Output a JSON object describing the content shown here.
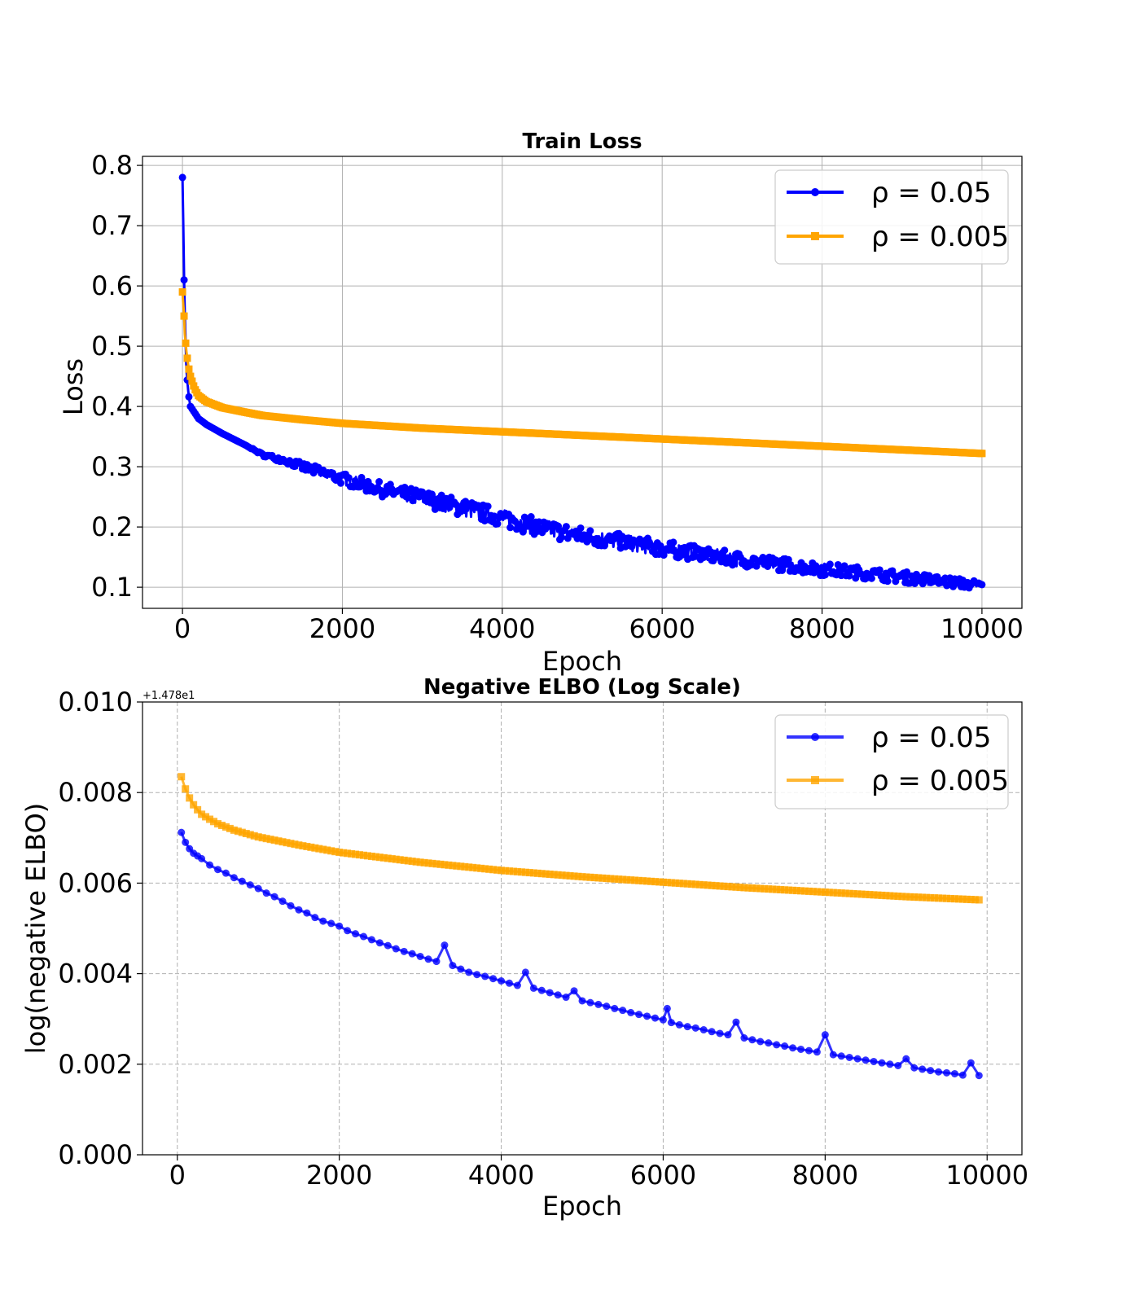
{
  "chart_data": [
    {
      "type": "line",
      "title": "Train Loss",
      "xlabel": "Epoch",
      "ylabel": "Loss",
      "xlim": [
        -500,
        10500
      ],
      "ylim": [
        0.065,
        0.815
      ],
      "xticks": [
        0,
        2000,
        4000,
        6000,
        8000,
        10000
      ],
      "yticks": [
        0.1,
        0.2,
        0.3,
        0.4,
        0.5,
        0.6,
        0.7,
        0.8
      ],
      "xtick_labels": [
        "0",
        "2000",
        "4000",
        "6000",
        "8000",
        "10000"
      ],
      "ytick_labels": [
        "0.1",
        "0.2",
        "0.3",
        "0.4",
        "0.5",
        "0.6",
        "0.7",
        "0.8"
      ],
      "grid": true,
      "grid_style": "solid",
      "legend_position": "top-right",
      "series": [
        {
          "name": "ρ = 0.05",
          "color": "#0000ff",
          "marker": "circle",
          "x": [
            0,
            10,
            20,
            30,
            50,
            75,
            100,
            150,
            200,
            300,
            500,
            800,
            1000,
            1300,
            1500,
            2000,
            2500,
            3000,
            3500,
            4000,
            4500,
            5000,
            5500,
            6000,
            6500,
            7000,
            7500,
            8000,
            8500,
            9000,
            9500,
            10000
          ],
          "y": [
            0.78,
            0.7,
            0.61,
            0.55,
            0.46,
            0.42,
            0.4,
            0.39,
            0.38,
            0.37,
            0.355,
            0.335,
            0.32,
            0.31,
            0.3,
            0.28,
            0.262,
            0.248,
            0.232,
            0.215,
            0.198,
            0.185,
            0.175,
            0.165,
            0.155,
            0.145,
            0.138,
            0.13,
            0.124,
            0.117,
            0.11,
            0.103
          ],
          "noise": [
            0,
            0,
            0,
            0,
            0,
            0,
            0,
            0,
            0,
            0,
            0,
            0,
            0.004,
            0.008,
            0.012,
            0.016,
            0.02,
            0.022,
            0.024,
            0.024,
            0.024,
            0.024,
            0.022,
            0.022,
            0.02,
            0.02,
            0.018,
            0.018,
            0.016,
            0.016,
            0.014,
            0.012
          ]
        },
        {
          "name": "ρ = 0.005",
          "color": "#ffa500",
          "marker": "square",
          "x": [
            0,
            10,
            20,
            30,
            50,
            75,
            100,
            150,
            200,
            300,
            500,
            800,
            1000,
            1500,
            2000,
            3000,
            4000,
            5000,
            6000,
            7000,
            8000,
            9000,
            10000
          ],
          "y": [
            0.59,
            0.57,
            0.55,
            0.52,
            0.49,
            0.465,
            0.45,
            0.43,
            0.418,
            0.408,
            0.398,
            0.39,
            0.385,
            0.378,
            0.372,
            0.364,
            0.358,
            0.352,
            0.346,
            0.34,
            0.334,
            0.328,
            0.322
          ]
        }
      ]
    },
    {
      "type": "line",
      "title": "Negative ELBO (Log Scale)",
      "xlabel": "Epoch",
      "ylabel": "log(negative ELBO)",
      "offset_text": "+1.478e1",
      "xlim": [
        -430,
        10430
      ],
      "ylim": [
        0.0,
        0.01
      ],
      "xticks": [
        0,
        2000,
        4000,
        6000,
        8000,
        10000
      ],
      "yticks": [
        0.0,
        0.002,
        0.004,
        0.006,
        0.008,
        0.01
      ],
      "xtick_labels": [
        "0",
        "2000",
        "4000",
        "6000",
        "8000",
        "10000"
      ],
      "ytick_labels": [
        "0.000",
        "0.002",
        "0.004",
        "0.006",
        "0.008",
        "0.010"
      ],
      "grid": true,
      "grid_style": "dashed",
      "legend_position": "top-right",
      "series": [
        {
          "name": "ρ = 0.05",
          "color": "#0000ff",
          "opacity": 0.8,
          "marker": "circle",
          "x": [
            50,
            100,
            150,
            200,
            250,
            300,
            400,
            500,
            600,
            700,
            800,
            900,
            1000,
            1100,
            1200,
            1300,
            1400,
            1500,
            1600,
            1700,
            1800,
            1900,
            2000,
            2100,
            2200,
            2300,
            2400,
            2500,
            2600,
            2700,
            2800,
            2900,
            3000,
            3100,
            3200,
            3300,
            3400,
            3500,
            3600,
            3700,
            3800,
            3900,
            4000,
            4100,
            4200,
            4300,
            4400,
            4500,
            4600,
            4700,
            4800,
            4900,
            5000,
            5100,
            5200,
            5300,
            5400,
            5500,
            5600,
            5700,
            5800,
            5900,
            6000,
            6050,
            6100,
            6200,
            6300,
            6400,
            6500,
            6600,
            6700,
            6800,
            6900,
            7000,
            7100,
            7200,
            7300,
            7400,
            7500,
            7600,
            7700,
            7800,
            7900,
            8000,
            8100,
            8200,
            8300,
            8400,
            8500,
            8600,
            8700,
            8800,
            8900,
            9000,
            9100,
            9200,
            9300,
            9400,
            9500,
            9600,
            9700,
            9800,
            9900
          ],
          "y": [
            0.00712,
            0.0069,
            0.00676,
            0.00666,
            0.0066,
            0.00654,
            0.0064,
            0.0063,
            0.00622,
            0.00612,
            0.00604,
            0.00596,
            0.00588,
            0.00578,
            0.0057,
            0.0056,
            0.0055,
            0.00541,
            0.00534,
            0.00524,
            0.00516,
            0.00511,
            0.00505,
            0.00495,
            0.00488,
            0.00482,
            0.00475,
            0.00468,
            0.00462,
            0.00455,
            0.00449,
            0.00444,
            0.00438,
            0.00432,
            0.00427,
            0.00463,
            0.00418,
            0.0041,
            0.00403,
            0.00398,
            0.00394,
            0.00389,
            0.00384,
            0.00379,
            0.00374,
            0.00403,
            0.00368,
            0.00363,
            0.00358,
            0.00353,
            0.00348,
            0.00362,
            0.0034,
            0.00336,
            0.00332,
            0.00328,
            0.00323,
            0.00319,
            0.00314,
            0.0031,
            0.00306,
            0.00302,
            0.00298,
            0.00323,
            0.00292,
            0.00287,
            0.00283,
            0.0028,
            0.00276,
            0.00272,
            0.00268,
            0.00265,
            0.00293,
            0.00258,
            0.00254,
            0.0025,
            0.00247,
            0.00243,
            0.0024,
            0.00236,
            0.00233,
            0.0023,
            0.00227,
            0.00265,
            0.00221,
            0.00218,
            0.00215,
            0.00212,
            0.00209,
            0.00206,
            0.00203,
            0.002,
            0.00197,
            0.00212,
            0.00192,
            0.00189,
            0.00186,
            0.00183,
            0.00181,
            0.00179,
            0.00176,
            0.00203,
            0.00175
          ]
        },
        {
          "name": "ρ = 0.005",
          "color": "#ffa500",
          "opacity": 0.8,
          "marker": "square",
          "x": [
            50,
            100,
            150,
            200,
            250,
            300,
            400,
            500,
            700,
            1000,
            1500,
            2000,
            3000,
            4000,
            5000,
            6000,
            7000,
            8000,
            9000,
            9900
          ],
          "y": [
            0.00835,
            0.00808,
            0.00788,
            0.00773,
            0.00762,
            0.00752,
            0.00741,
            0.00731,
            0.00717,
            0.00702,
            0.00684,
            0.00668,
            0.00646,
            0.00628,
            0.00614,
            0.00602,
            0.0059,
            0.0058,
            0.0057,
            0.00563
          ]
        }
      ]
    }
  ]
}
